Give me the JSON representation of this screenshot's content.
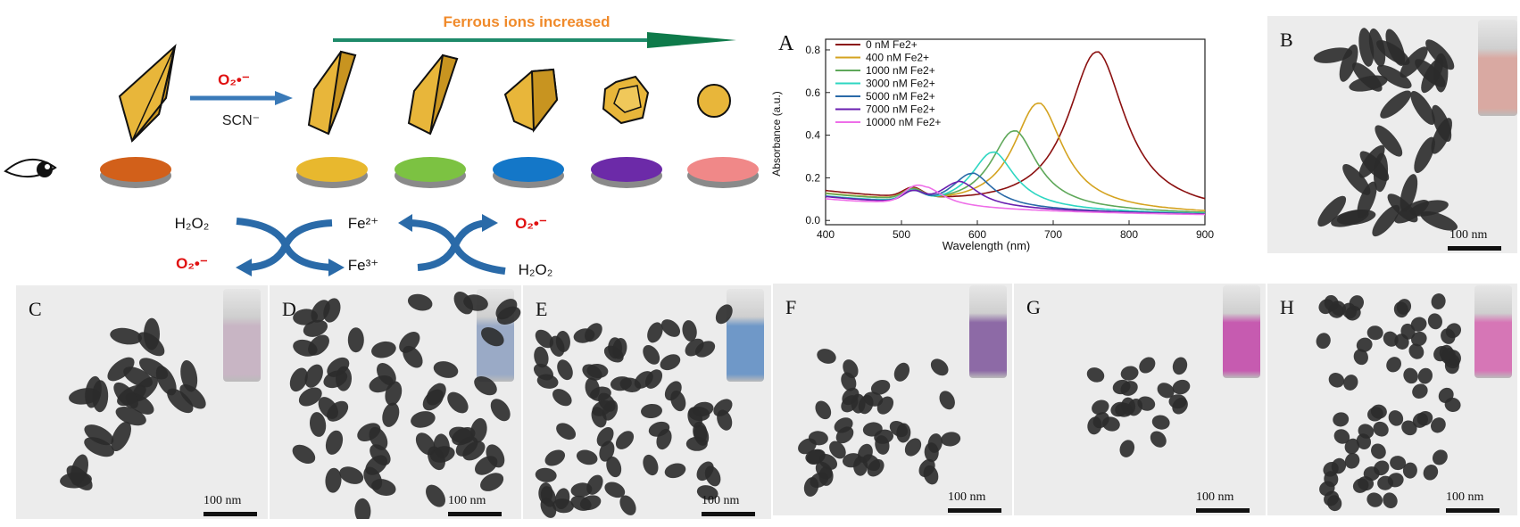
{
  "schematic": {
    "arrow_label": "Ferrous ions increased",
    "oxidant_label": "O₂•⁻",
    "reagent_label": "SCN⁻",
    "cycle": {
      "h2o2_left": "H₂O₂",
      "fe2": "Fe²⁺",
      "fe3": "Fe³⁺",
      "o2_left": "O₂•⁻",
      "o2_right": "O₂•⁻",
      "h2o2_right": "H₂O₂"
    },
    "solution_colors": [
      "#d2601a",
      "#e8b82e",
      "#7cc242",
      "#1477c8",
      "#6c2aa8",
      "#f08888"
    ],
    "particle_stages": [
      "bipyramid",
      "truncated-bipyramid",
      "truncated-bipyramid",
      "short-truncated",
      "polyhedron",
      "sphere"
    ]
  },
  "chart_data": {
    "type": "line",
    "panel_label": "A",
    "xlabel": "Wavelength (nm)",
    "ylabel": "Absorbance (a.u.)",
    "xlim": [
      400,
      900
    ],
    "ylim": [
      -0.02,
      0.85
    ],
    "xticks": [
      "400",
      "500",
      "600",
      "700",
      "800",
      "900"
    ],
    "yticks": [
      "0.0",
      "0.2",
      "0.4",
      "0.6",
      "0.8"
    ],
    "legend_position": "top-left",
    "series": [
      {
        "name": "0 nM Fe2+",
        "color": "#8b1010",
        "peak_x": 757,
        "peak_y": 0.79,
        "base": 0.12
      },
      {
        "name": "400 nM Fe2+",
        "color": "#d4a320",
        "peak_x": 680,
        "peak_y": 0.55,
        "base": 0.11
      },
      {
        "name": "1000 nM Fe2+",
        "color": "#5fa85a",
        "peak_x": 648,
        "peak_y": 0.42,
        "base": 0.11
      },
      {
        "name": "3000 nM Fe2+",
        "color": "#2ed6c2",
        "peak_x": 620,
        "peak_y": 0.32,
        "base": 0.1
      },
      {
        "name": "5000 nM Fe2+",
        "color": "#2a6aa8",
        "peak_x": 592,
        "peak_y": 0.22,
        "base": 0.1
      },
      {
        "name": "7000 nM Fe2+",
        "color": "#6a1fb0",
        "peak_x": 575,
        "peak_y": 0.18,
        "base": 0.1
      },
      {
        "name": "10000 nM Fe2+",
        "color": "#ee6ee8",
        "peak_x": 535,
        "peak_y": 0.14,
        "base": 0.09
      }
    ]
  },
  "panels": [
    {
      "label": "B",
      "scale": "100 nm",
      "vial_color": "#d9a9a2"
    },
    {
      "label": "C",
      "scale": "100 nm",
      "vial_color": "#c8b5c4"
    },
    {
      "label": "D",
      "scale": "100 nm",
      "vial_color": "#9aaac6"
    },
    {
      "label": "E",
      "scale": "100 nm",
      "vial_color": "#6f98c8"
    },
    {
      "label": "F",
      "scale": "100 nm",
      "vial_color": "#8d6aa6"
    },
    {
      "label": "G",
      "scale": "100 nm",
      "vial_color": "#c65bb0"
    },
    {
      "label": "H",
      "scale": "100 nm",
      "vial_color": "#d676b6"
    }
  ]
}
